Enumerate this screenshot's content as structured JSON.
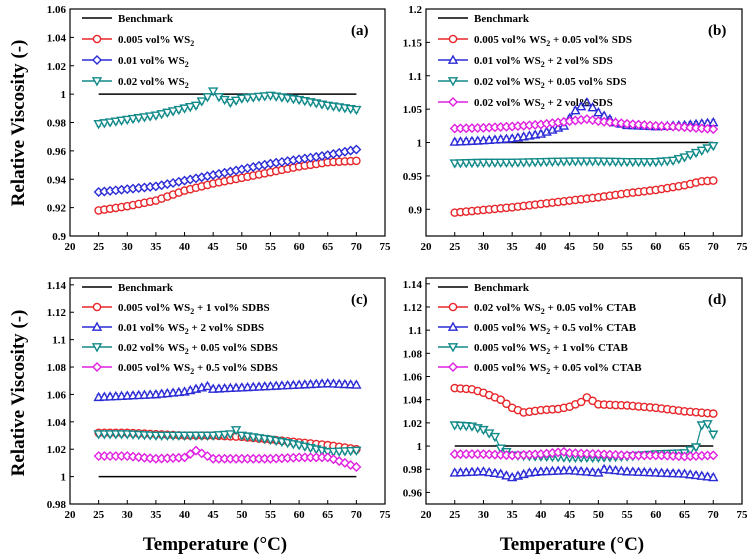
{
  "figure": {
    "ylabel": "Relative Viscosity (-)",
    "xlabel": "Temperature (°C)"
  },
  "chart_data": [
    {
      "panel": "(a)",
      "type": "line",
      "xlim": [
        20,
        75
      ],
      "ylim": [
        0.9,
        1.06
      ],
      "xticks": [
        20,
        25,
        30,
        35,
        40,
        45,
        50,
        55,
        60,
        65,
        70,
        75
      ],
      "yticks": [
        0.9,
        0.92,
        0.94,
        0.96,
        0.98,
        1.0,
        1.02,
        1.04,
        1.06
      ],
      "ytick_labels": [
        "0.9",
        "0.92",
        "0.94",
        "0.96",
        "0.98",
        "1",
        "1.02",
        "1.04",
        "1.06"
      ],
      "xlabel": "",
      "ylabel": "Relative Viscosity (-)",
      "benchmark": {
        "name": "Benchmark",
        "value": 1.0,
        "x": [
          25,
          70
        ]
      },
      "series": [
        {
          "name": "0.005 vol% WS",
          "sub": "2",
          "tail": "",
          "color": "#e8262a",
          "marker": "circle",
          "x": [
            25,
            30,
            35,
            40,
            45,
            50,
            55,
            60,
            65,
            70
          ],
          "values": [
            0.918,
            0.921,
            0.925,
            0.932,
            0.937,
            0.941,
            0.945,
            0.949,
            0.952,
            0.953
          ]
        },
        {
          "name": "0.01 vol% WS",
          "sub": "2",
          "tail": "",
          "color": "#2b2bd6",
          "marker": "diamond",
          "x": [
            25,
            30,
            35,
            40,
            45,
            50,
            55,
            60,
            65,
            70
          ],
          "values": [
            0.931,
            0.933,
            0.935,
            0.939,
            0.943,
            0.947,
            0.951,
            0.954,
            0.957,
            0.961
          ]
        },
        {
          "name": "0.02 vol% WS",
          "sub": "2",
          "tail": "",
          "color": "#138a8a",
          "marker": "tri_down",
          "x": [
            25,
            30,
            35,
            40,
            42,
            44,
            45,
            46,
            48,
            50,
            55,
            60,
            65,
            70
          ],
          "values": [
            0.979,
            0.982,
            0.985,
            0.99,
            0.992,
            0.998,
            1.002,
            0.998,
            0.994,
            0.997,
            0.999,
            0.996,
            0.992,
            0.989
          ]
        }
      ]
    },
    {
      "panel": "(b)",
      "type": "line",
      "xlim": [
        20,
        75
      ],
      "ylim": [
        0.86,
        1.2
      ],
      "xticks": [
        20,
        25,
        30,
        35,
        40,
        45,
        50,
        55,
        60,
        65,
        70,
        75
      ],
      "yticks": [
        0.9,
        0.95,
        1.0,
        1.05,
        1.1,
        1.15,
        1.2
      ],
      "ytick_labels": [
        "0.9",
        "0.95",
        "1",
        "1.05",
        "1.1",
        "1.15",
        "1.2"
      ],
      "xlabel": "",
      "ylabel": "",
      "benchmark": {
        "name": "Benchmark",
        "value": 1.0,
        "x": [
          25,
          70
        ]
      },
      "series": [
        {
          "name": "0.005 vol% WS",
          "sub": "2",
          "tail": " + 0.05 vol% SDS",
          "color": "#e8262a",
          "marker": "circle",
          "x": [
            25,
            30,
            35,
            40,
            45,
            50,
            55,
            60,
            65,
            68,
            70
          ],
          "values": [
            0.895,
            0.899,
            0.903,
            0.908,
            0.913,
            0.918,
            0.924,
            0.929,
            0.936,
            0.942,
            0.943
          ]
        },
        {
          "name": "0.01 vol% WS",
          "sub": "2",
          "tail": " + 2 vol% SDS",
          "color": "#2b2bd6",
          "marker": "triangle",
          "x": [
            25,
            30,
            35,
            40,
            44,
            46,
            48,
            50,
            53,
            55,
            60,
            65,
            70
          ],
          "values": [
            1.001,
            1.003,
            1.006,
            1.013,
            1.025,
            1.048,
            1.06,
            1.045,
            1.03,
            1.026,
            1.024,
            1.026,
            1.03
          ]
        },
        {
          "name": "0.02 vol% WS",
          "sub": "2",
          "tail": " + 0.05 vol% SDS",
          "color": "#138a8a",
          "marker": "tri_down",
          "x": [
            25,
            30,
            35,
            40,
            45,
            50,
            55,
            60,
            63,
            65,
            68,
            70
          ],
          "values": [
            0.969,
            0.97,
            0.97,
            0.971,
            0.972,
            0.972,
            0.971,
            0.971,
            0.973,
            0.978,
            0.988,
            0.995
          ]
        },
        {
          "name": "0.02 vol% WS",
          "sub": "2",
          "tail": " + 2 vol% SDS",
          "color": "#e020e0",
          "marker": "diamond",
          "x": [
            25,
            30,
            35,
            40,
            45,
            48,
            50,
            55,
            60,
            65,
            70
          ],
          "values": [
            1.021,
            1.022,
            1.024,
            1.027,
            1.032,
            1.035,
            1.032,
            1.028,
            1.025,
            1.023,
            1.02
          ]
        }
      ]
    },
    {
      "panel": "(c)",
      "type": "line",
      "xlim": [
        20,
        75
      ],
      "ylim": [
        0.98,
        1.145
      ],
      "xticks": [
        20,
        25,
        30,
        35,
        40,
        45,
        50,
        55,
        60,
        65,
        70,
        75
      ],
      "yticks": [
        0.98,
        1.0,
        1.02,
        1.04,
        1.06,
        1.08,
        1.1,
        1.12,
        1.14
      ],
      "ytick_labels": [
        "0.98",
        "1",
        "1.02",
        "1.04",
        "1.06",
        "1.08",
        "1.1",
        "1.12",
        "1.14"
      ],
      "xlabel": "Temperature (°C)",
      "ylabel": "Relative Viscosity (-)",
      "benchmark": {
        "name": "Benchmark",
        "value": 1.0,
        "x": [
          25,
          70
        ]
      },
      "series": [
        {
          "name": "0.005 vol% WS",
          "sub": "2",
          "tail": " + 1 vol% SDBS",
          "color": "#e8262a",
          "marker": "circle",
          "x": [
            25,
            30,
            35,
            40,
            45,
            50,
            55,
            60,
            65,
            70
          ],
          "values": [
            1.032,
            1.032,
            1.031,
            1.03,
            1.03,
            1.029,
            1.027,
            1.025,
            1.023,
            1.02
          ]
        },
        {
          "name": "0.01 vol% WS",
          "sub": "2",
          "tail": " + 2 vol% SDBS",
          "color": "#2b2bd6",
          "marker": "triangle",
          "x": [
            25,
            30,
            35,
            40,
            44,
            45,
            50,
            55,
            60,
            65,
            70
          ],
          "values": [
            1.058,
            1.059,
            1.06,
            1.062,
            1.066,
            1.064,
            1.065,
            1.066,
            1.067,
            1.068,
            1.067
          ]
        },
        {
          "name": "0.02 vol% WS",
          "sub": "2",
          "tail": " + 0.05 vol% SDBS",
          "color": "#138a8a",
          "marker": "tri_down",
          "x": [
            25,
            30,
            35,
            40,
            45,
            48,
            49,
            50,
            55,
            60,
            65,
            70
          ],
          "values": [
            1.031,
            1.031,
            1.03,
            1.03,
            1.03,
            1.031,
            1.034,
            1.03,
            1.027,
            1.023,
            1.018,
            1.019
          ]
        },
        {
          "name": "0.005 vol% WS",
          "sub": "2",
          "tail": " + 0.5 vol% SDBS",
          "color": "#e020e0",
          "marker": "diamond",
          "x": [
            25,
            30,
            35,
            40,
            42,
            45,
            50,
            55,
            60,
            65,
            68,
            70
          ],
          "values": [
            1.015,
            1.015,
            1.013,
            1.014,
            1.019,
            1.013,
            1.013,
            1.013,
            1.014,
            1.014,
            1.01,
            1.007
          ]
        }
      ]
    },
    {
      "panel": "(d)",
      "type": "line",
      "xlim": [
        20,
        75
      ],
      "ylim": [
        0.95,
        1.145
      ],
      "xticks": [
        20,
        25,
        30,
        35,
        40,
        45,
        50,
        55,
        60,
        65,
        70,
        75
      ],
      "yticks": [
        0.96,
        0.98,
        1.0,
        1.02,
        1.04,
        1.06,
        1.08,
        1.1,
        1.12,
        1.14
      ],
      "ytick_labels": [
        "0.96",
        "0.98",
        "1",
        "1.02",
        "1.04",
        "1.06",
        "1.08",
        "1.1",
        "1.12",
        "1.14"
      ],
      "xlabel": "Temperature (°C)",
      "ylabel": "",
      "benchmark": {
        "name": "Benchmark",
        "value": 1.0,
        "x": [
          25,
          70
        ]
      },
      "series": [
        {
          "name": "0.02 vol% WS",
          "sub": "2",
          "tail": " + 0.05 vol% CTAB",
          "color": "#e8262a",
          "marker": "circle",
          "x": [
            25,
            28,
            30,
            33,
            35,
            37,
            40,
            43,
            45,
            47,
            48,
            50,
            55,
            60,
            65,
            70
          ],
          "values": [
            1.05,
            1.049,
            1.046,
            1.04,
            1.033,
            1.029,
            1.031,
            1.032,
            1.034,
            1.038,
            1.042,
            1.036,
            1.035,
            1.033,
            1.03,
            1.028
          ]
        },
        {
          "name": "0.005 vol% WS",
          "sub": "2",
          "tail": " + 0.5 vol% CTAB",
          "color": "#2b2bd6",
          "marker": "triangle",
          "x": [
            25,
            30,
            33,
            35,
            38,
            40,
            45,
            50,
            51,
            55,
            60,
            65,
            70
          ],
          "values": [
            0.977,
            0.978,
            0.976,
            0.973,
            0.977,
            0.978,
            0.979,
            0.977,
            0.98,
            0.978,
            0.977,
            0.976,
            0.973
          ]
        },
        {
          "name": "0.005 vol% WS",
          "sub": "2",
          "tail": " + 1 vol% CTAB",
          "color": "#138a8a",
          "marker": "tri_down",
          "x": [
            25,
            28,
            30,
            32,
            33,
            35,
            40,
            45,
            50,
            55,
            60,
            65,
            67,
            68,
            69,
            70
          ],
          "values": [
            1.018,
            1.017,
            1.014,
            1.008,
            0.998,
            0.992,
            0.991,
            0.99,
            0.99,
            0.991,
            0.993,
            0.994,
            0.999,
            1.018,
            1.019,
            1.01
          ]
        },
        {
          "name": "0.005 vol% WS",
          "sub": "2",
          "tail": " + 0.05 vol% CTAB",
          "color": "#e020e0",
          "marker": "diamond",
          "x": [
            25,
            30,
            35,
            40,
            44,
            45,
            50,
            55,
            60,
            65,
            70
          ],
          "values": [
            0.993,
            0.993,
            0.992,
            0.993,
            0.995,
            0.994,
            0.993,
            0.992,
            0.992,
            0.991,
            0.992
          ]
        }
      ]
    }
  ]
}
